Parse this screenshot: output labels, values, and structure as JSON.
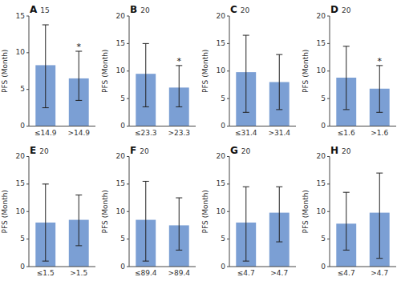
{
  "chart_data": [
    {
      "type": "bar",
      "title": "A",
      "subtitle": "15",
      "y_label": "PFS (Month)",
      "categories": [
        "≤14.9",
        ">14.9"
      ],
      "values": [
        8.3,
        6.5
      ],
      "error_low": [
        2.5,
        3.5
      ],
      "error_high": [
        13.8,
        10.2
      ],
      "annotations": [
        {
          "text": "*",
          "category": ">14.9"
        }
      ],
      "color": "#7b9fd4",
      "ylim": [
        0,
        15
      ],
      "yticks": [
        0,
        5,
        10,
        15
      ],
      "grid": false
    },
    {
      "type": "bar",
      "title": "B",
      "subtitle": "20",
      "y_label": "PFS (Month)",
      "categories": [
        "≤23.3",
        ">23.3"
      ],
      "values": [
        9.5,
        7.0
      ],
      "error_low": [
        3.5,
        3.5
      ],
      "error_high": [
        15.0,
        11.0
      ],
      "annotations": [
        {
          "text": "*",
          "category": ">23.3"
        }
      ],
      "color": "#7b9fd4",
      "ylim": [
        0,
        20
      ],
      "yticks": [
        0,
        5,
        10,
        15,
        20
      ],
      "grid": false
    },
    {
      "type": "bar",
      "title": "C",
      "subtitle": "20",
      "y_label": "PFS (Month)",
      "categories": [
        "≤31.4",
        ">31.4"
      ],
      "values": [
        9.8,
        8.0
      ],
      "error_low": [
        2.5,
        3.0
      ],
      "error_high": [
        16.5,
        13.0
      ],
      "color": "#7b9fd4",
      "ylim": [
        0,
        20
      ],
      "yticks": [
        0,
        5,
        10,
        15,
        20
      ],
      "grid": false
    },
    {
      "type": "bar",
      "title": "D",
      "subtitle": "20",
      "y_label": "PFS (Month)",
      "categories": [
        "≤1.6",
        ">1.6"
      ],
      "values": [
        8.8,
        6.8
      ],
      "error_low": [
        3.0,
        2.5
      ],
      "error_high": [
        14.5,
        11.0
      ],
      "annotations": [
        {
          "text": "*",
          "category": ">1.6"
        }
      ],
      "color": "#7b9fd4",
      "ylim": [
        0,
        20
      ],
      "yticks": [
        0,
        5,
        10,
        15,
        20
      ],
      "grid": false
    },
    {
      "type": "bar",
      "title": "E",
      "subtitle": "20",
      "y_label": "PFS (Month)",
      "categories": [
        "≤1.5",
        ">1.5"
      ],
      "values": [
        8.0,
        8.5
      ],
      "error_low": [
        1.0,
        3.8
      ],
      "error_high": [
        15.0,
        13.0
      ],
      "color": "#7b9fd4",
      "ylim": [
        0,
        20
      ],
      "yticks": [
        0,
        5,
        10,
        15,
        20
      ],
      "grid": false
    },
    {
      "type": "bar",
      "title": "F",
      "subtitle": "20",
      "y_label": "PFS (Month)",
      "categories": [
        "≤89.4",
        ">89.4"
      ],
      "values": [
        8.5,
        7.5
      ],
      "error_low": [
        1.0,
        3.0
      ],
      "error_high": [
        15.5,
        12.5
      ],
      "color": "#7b9fd4",
      "ylim": [
        0,
        20
      ],
      "yticks": [
        0,
        5,
        10,
        15,
        20
      ],
      "grid": false
    },
    {
      "type": "bar",
      "title": "G",
      "subtitle": "20",
      "y_label": "PFS (Month)",
      "categories": [
        "≤4.7",
        ">4.7"
      ],
      "values": [
        8.0,
        9.8
      ],
      "error_low": [
        1.0,
        4.5
      ],
      "error_high": [
        14.5,
        14.5
      ],
      "color": "#7b9fd4",
      "ylim": [
        0,
        20
      ],
      "yticks": [
        0,
        5,
        10,
        15,
        20
      ],
      "grid": false
    },
    {
      "type": "bar",
      "title": "H",
      "subtitle": "20",
      "y_label": "PFS (Month)",
      "categories": [
        "≤4.7",
        ">4.7"
      ],
      "values": [
        7.8,
        9.8
      ],
      "error_low": [
        3.0,
        1.5
      ],
      "error_high": [
        13.5,
        17.0
      ],
      "color": "#7b9fd4",
      "ylim": [
        0,
        20
      ],
      "yticks": [
        0,
        5,
        10,
        15,
        20
      ],
      "grid": false
    }
  ]
}
